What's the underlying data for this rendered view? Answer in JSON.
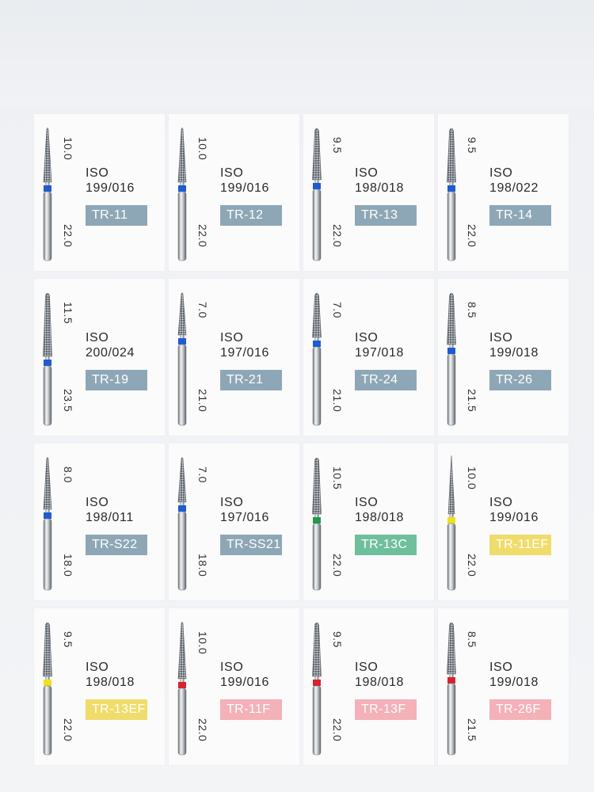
{
  "colors": {
    "blue": "#1f5bd1",
    "green": "#1f9c4a",
    "yellow": "#f2e018",
    "red": "#d8232e",
    "badge_blue": "#8ea7b6",
    "badge_green": "#6fbf9c",
    "badge_yellow": "#efdc6b",
    "badge_pink": "#f4b1b8"
  },
  "products": [
    {
      "head_length": "10.0",
      "total_length": "22.0",
      "iso_label": "ISO",
      "iso_code": "199/016",
      "model": "TR-11",
      "band": "blue",
      "badge": "badge_blue",
      "tip": "taper",
      "head_frac": 0.42
    },
    {
      "head_length": "10.0",
      "total_length": "22.0",
      "iso_label": "ISO",
      "iso_code": "199/016",
      "model": "TR-12",
      "band": "blue",
      "badge": "badge_blue",
      "tip": "taper",
      "head_frac": 0.42
    },
    {
      "head_length": "9.5",
      "total_length": "22.0",
      "iso_label": "ISO",
      "iso_code": "198/018",
      "model": "TR-13",
      "band": "blue",
      "badge": "badge_blue",
      "tip": "round",
      "head_frac": 0.4
    },
    {
      "head_length": "9.5",
      "total_length": "22.0",
      "iso_label": "ISO",
      "iso_code": "198/022",
      "model": "TR-14",
      "band": "blue",
      "badge": "badge_blue",
      "tip": "round",
      "head_frac": 0.42
    },
    {
      "head_length": "11.5",
      "total_length": "23.5",
      "iso_label": "ISO",
      "iso_code": "200/024",
      "model": "TR-19",
      "band": "blue",
      "badge": "badge_blue",
      "tip": "round",
      "head_frac": 0.5
    },
    {
      "head_length": "7.0",
      "total_length": "21.0",
      "iso_label": "ISO",
      "iso_code": "197/016",
      "model": "TR-21",
      "band": "blue",
      "badge": "badge_blue",
      "tip": "taper",
      "head_frac": 0.32
    },
    {
      "head_length": "7.0",
      "total_length": "21.0",
      "iso_label": "ISO",
      "iso_code": "197/018",
      "model": "TR-24",
      "band": "blue",
      "badge": "badge_blue",
      "tip": "round",
      "head_frac": 0.34
    },
    {
      "head_length": "8.5",
      "total_length": "21.5",
      "iso_label": "ISO",
      "iso_code": "199/018",
      "model": "TR-26",
      "band": "blue",
      "badge": "badge_blue",
      "tip": "round",
      "head_frac": 0.4
    },
    {
      "head_length": "8.0",
      "total_length": "18.0",
      "iso_label": "ISO",
      "iso_code": "198/011",
      "model": "TR-S22",
      "band": "blue",
      "badge": "badge_blue",
      "tip": "taper",
      "head_frac": 0.4
    },
    {
      "head_length": "7.0",
      "total_length": "18.0",
      "iso_label": "ISO",
      "iso_code": "197/016",
      "model": "TR-SS21",
      "band": "blue",
      "badge": "badge_blue",
      "tip": "taper",
      "head_frac": 0.34
    },
    {
      "head_length": "10.5",
      "total_length": "22.0",
      "iso_label": "ISO",
      "iso_code": "198/018",
      "model": "TR-13C",
      "band": "green",
      "badge": "badge_green",
      "tip": "round",
      "head_frac": 0.44
    },
    {
      "head_length": "10.0",
      "total_length": "22.0",
      "iso_label": "ISO",
      "iso_code": "199/016",
      "model": "TR-11EF",
      "band": "yellow",
      "badge": "badge_yellow",
      "tip": "needle",
      "head_frac": 0.44
    },
    {
      "head_length": "9.5",
      "total_length": "22.0",
      "iso_label": "ISO",
      "iso_code": "198/018",
      "model": "TR-13EF",
      "band": "yellow",
      "badge": "badge_yellow",
      "tip": "round",
      "head_frac": 0.42
    },
    {
      "head_length": "10.0",
      "total_length": "22.0",
      "iso_label": "ISO",
      "iso_code": "199/016",
      "model": "TR-11F",
      "band": "red",
      "badge": "badge_pink",
      "tip": "taper",
      "head_frac": 0.44
    },
    {
      "head_length": "9.5",
      "total_length": "22.0",
      "iso_label": "ISO",
      "iso_code": "198/018",
      "model": "TR-13F",
      "band": "red",
      "badge": "badge_pink",
      "tip": "round",
      "head_frac": 0.42
    },
    {
      "head_length": "8.5",
      "total_length": "21.5",
      "iso_label": "ISO",
      "iso_code": "199/018",
      "model": "TR-26F",
      "band": "red",
      "badge": "badge_pink",
      "tip": "round",
      "head_frac": 0.4
    }
  ]
}
